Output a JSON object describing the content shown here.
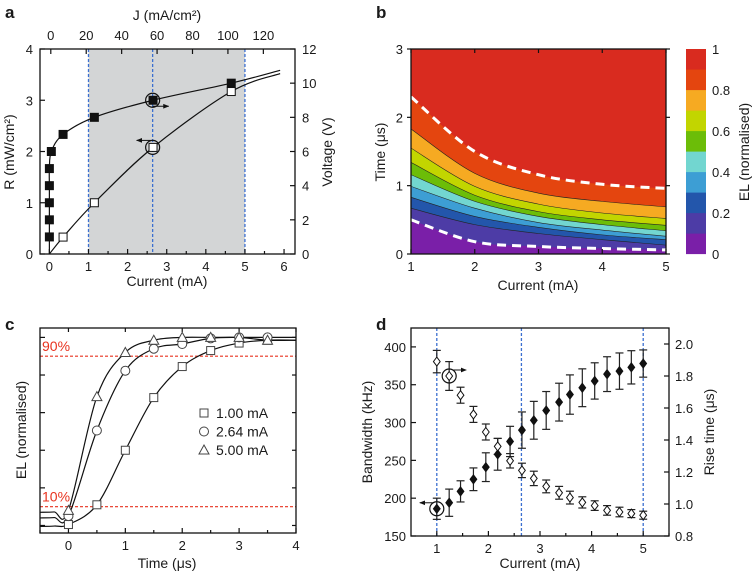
{
  "panel_labels": [
    "a",
    "b",
    "c",
    "d"
  ],
  "chart_data": [
    {
      "panel": "a",
      "type": "line",
      "xlabel": "Current (mA)",
      "xlabel_top": "J (mA/cm²)",
      "ylabel_left": "R (mW/cm²)",
      "ylabel_right": "Voltage (V)",
      "xlim": [
        -0.24,
        6.28
      ],
      "ylim_left": [
        0,
        4
      ],
      "ylim_right": [
        0,
        12
      ],
      "xticks": [
        "0",
        "1",
        "2",
        "3",
        "4",
        "5",
        "6"
      ],
      "xticks_top": [
        "0",
        "20",
        "40",
        "60",
        "80",
        "100",
        "120"
      ],
      "yticks_left": [
        "0",
        "1",
        "2",
        "3",
        "4"
      ],
      "yticks_right": [
        "0",
        "2",
        "4",
        "6",
        "8",
        "10",
        "12"
      ],
      "shaded_region": [
        1,
        5
      ],
      "shade_color": "#d3d5d6",
      "vlines": [
        1,
        2.64,
        5
      ],
      "vline_color": "#3b6fd0",
      "series": [
        {
          "axis": "right",
          "marker": "filled-square",
          "x": [
            0,
            0,
            0,
            0,
            0,
            0.05,
            0.35,
            1.15,
            2.65,
            4.65
          ],
          "y": [
            1,
            2,
            3,
            4,
            5,
            6,
            7,
            8,
            9,
            10
          ],
          "highlight": {
            "x": 2.64,
            "y": 9,
            "arrow": "right"
          }
        },
        {
          "axis": "left",
          "marker": "open-square",
          "x": [
            0.35,
            1.15,
            2.65,
            4.65
          ],
          "y": [
            0.33,
            1.0,
            2.08,
            3.17
          ],
          "highlight": {
            "x": 2.64,
            "y": 2.08,
            "arrow": "left"
          }
        }
      ]
    },
    {
      "panel": "b",
      "type": "heatmap",
      "xlabel": "Current (mA)",
      "ylabel": "Time (μs)",
      "colorbar_label": "EL (normalised)",
      "xlim": [
        1,
        5
      ],
      "ylim": [
        0,
        3
      ],
      "xticks": [
        "1",
        "2",
        "3",
        "4",
        "5"
      ],
      "yticks": [
        "0",
        "1",
        "2",
        "3"
      ],
      "colorbar_ticks": [
        "0",
        "0.2",
        "0.4",
        "0.6",
        "0.8",
        "1"
      ],
      "band_colors": [
        "#7a1fa8",
        "#4d3ca6",
        "#2356ab",
        "#3d9ed4",
        "#72d6d0",
        "#6cbd08",
        "#c2d500",
        "#f6aa22",
        "#e4450f",
        "#d92b1f"
      ],
      "contour_currents": [
        1,
        2,
        3,
        4,
        5
      ],
      "contours": [
        {
          "level": 0.1,
          "dashed": true,
          "time": [
            0.5,
            0.18,
            0.11,
            0.08,
            0.06
          ]
        },
        {
          "level": 0.2,
          "dashed": false,
          "time": [
            0.67,
            0.43,
            0.3,
            0.21,
            0.13
          ]
        },
        {
          "level": 0.3,
          "dashed": false,
          "time": [
            0.83,
            0.55,
            0.39,
            0.28,
            0.21
          ]
        },
        {
          "level": 0.4,
          "dashed": false,
          "time": [
            0.99,
            0.67,
            0.46,
            0.35,
            0.26
          ]
        },
        {
          "level": 0.5,
          "dashed": false,
          "time": [
            1.16,
            0.77,
            0.55,
            0.43,
            0.34
          ]
        },
        {
          "level": 0.6,
          "dashed": false,
          "time": [
            1.34,
            0.86,
            0.62,
            0.5,
            0.42
          ]
        },
        {
          "level": 0.7,
          "dashed": false,
          "time": [
            1.55,
            0.99,
            0.73,
            0.6,
            0.52
          ]
        },
        {
          "level": 0.8,
          "dashed": false,
          "time": [
            1.83,
            1.18,
            0.89,
            0.77,
            0.69
          ]
        },
        {
          "level": 0.9,
          "dashed": true,
          "time": [
            2.3,
            1.5,
            1.16,
            1.02,
            0.96
          ]
        }
      ]
    },
    {
      "panel": "c",
      "type": "line",
      "xlabel": "Time (μs)",
      "ylabel": "EL (normalised)",
      "xlim": [
        -0.5,
        4
      ],
      "ylim": [
        -0.04,
        1.05
      ],
      "xticks": [
        "0",
        "1",
        "2",
        "3",
        "4"
      ],
      "hlines": [
        {
          "y": 0.9,
          "label": "90%"
        },
        {
          "y": 0.1,
          "label": "10%"
        }
      ],
      "hline_color": "#e8321e",
      "legend_position": "right-center",
      "series": [
        {
          "name": "1.00 mA",
          "marker": "square",
          "x": [
            0,
            0.5,
            1,
            1.5,
            2,
            2.5,
            3,
            3.5
          ],
          "y": [
            0.005,
            0.11,
            0.4,
            0.68,
            0.845,
            0.93,
            0.97,
            0.985
          ]
        },
        {
          "name": "2.64 mA",
          "marker": "circle",
          "x": [
            0,
            0.5,
            1,
            1.5,
            2,
            2.5,
            3,
            3.5
          ],
          "y": [
            0.05,
            0.505,
            0.823,
            0.94,
            0.965,
            0.995,
            1.0,
            1.0
          ]
        },
        {
          "name": "5.00 mA",
          "marker": "triangle",
          "x": [
            0,
            0.5,
            1,
            1.5,
            2,
            2.5,
            3,
            3.5
          ],
          "y": [
            0.08,
            0.685,
            0.92,
            0.985,
            1.0,
            1.0,
            1.0,
            0.985
          ]
        }
      ]
    },
    {
      "panel": "d",
      "type": "scatter",
      "xlabel": "Current (mA)",
      "ylabel_left": "Bandwidth (kHz)",
      "ylabel_right": "Rise time (μs)",
      "xlim": [
        0.5,
        5.5
      ],
      "ylim_left": [
        150,
        425
      ],
      "ylim_right": [
        0.8,
        2.1
      ],
      "xticks": [
        "1",
        "2",
        "3",
        "4",
        "5"
      ],
      "yticks_left": [
        "150",
        "200",
        "250",
        "300",
        "350",
        "400"
      ],
      "yticks_right": [
        "0.8",
        "1.0",
        "1.2",
        "1.4",
        "1.6",
        "1.8",
        "2.0"
      ],
      "vlines": [
        1,
        2.64,
        5
      ],
      "vline_color": "#3b6fd0",
      "x": [
        1,
        1.24,
        1.46,
        1.71,
        1.95,
        2.18,
        2.42,
        2.65,
        2.88,
        3.12,
        3.37,
        3.58,
        3.82,
        4.06,
        4.3,
        4.54,
        4.77,
        5.0
      ],
      "series": [
        {
          "axis": "left",
          "marker": "filled-diamond",
          "y": [
            186,
            194,
            209,
            225,
            241,
            258,
            275,
            290,
            303,
            316,
            327,
            337,
            346,
            355,
            364,
            368,
            373,
            378
          ],
          "err": [
            14,
            18,
            14,
            15,
            19,
            21,
            20,
            24,
            25,
            25,
            25,
            26,
            25,
            24,
            23,
            24,
            22,
            18
          ],
          "highlight": {
            "x": 1,
            "y": 186,
            "arrow": "left"
          }
        },
        {
          "axis": "right",
          "marker": "open-diamond",
          "y": [
            1.89,
            1.8,
            1.68,
            1.56,
            1.45,
            1.36,
            1.27,
            1.21,
            1.16,
            1.11,
            1.07,
            1.04,
            1.01,
            0.99,
            0.96,
            0.95,
            0.94,
            0.93
          ],
          "err": [
            0.07,
            0.09,
            0.05,
            0.05,
            0.05,
            0.05,
            0.045,
            0.045,
            0.045,
            0.04,
            0.04,
            0.04,
            0.035,
            0.03,
            0.03,
            0.03,
            0.025,
            0.025
          ],
          "highlight": {
            "x": 1.24,
            "y": 1.8,
            "arrow": "right"
          }
        }
      ]
    }
  ]
}
